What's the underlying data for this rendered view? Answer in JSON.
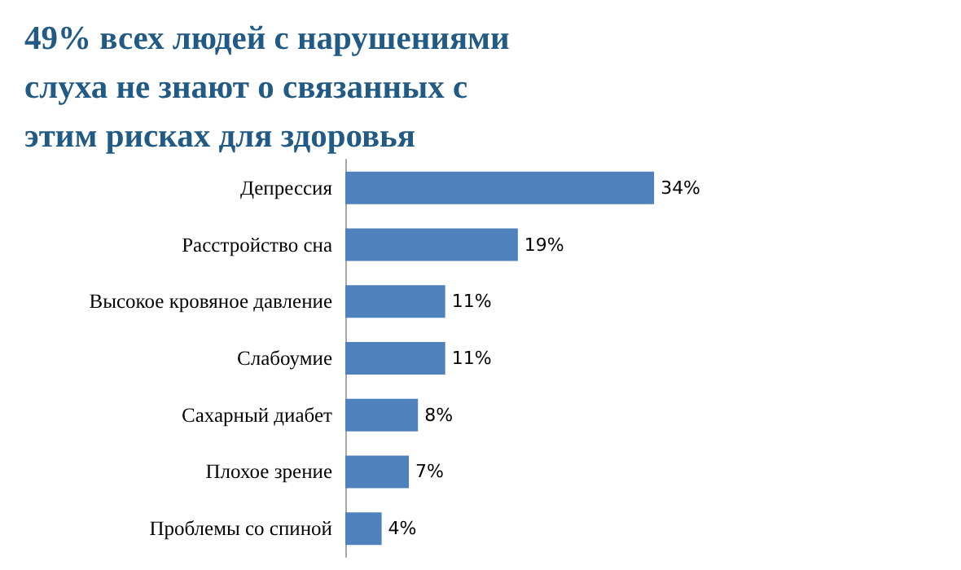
{
  "chart_data": {
    "type": "bar",
    "orientation": "horizontal",
    "title": "49% всех людей с нарушениями слуха не знают о связанных с этим рисках для здоровья",
    "categories": [
      "Депрессия",
      "Расстройство сна",
      "Высокое кровяное давление",
      "Слабоумие",
      "Сахарный диабет",
      "Плохое зрение",
      "Проблемы со спиной"
    ],
    "values": [
      34,
      19,
      11,
      11,
      8,
      7,
      4
    ],
    "color": "#4f81bd",
    "data_labels": true,
    "value_labels": [
      "34%",
      "19%",
      "11%",
      "11%",
      "8%",
      "7%",
      "4%"
    ]
  }
}
